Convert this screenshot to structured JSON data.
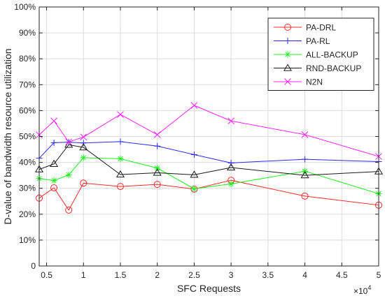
{
  "chart_data": {
    "type": "line",
    "xlabel": "SFC Requests",
    "ylabel": "D-value of bandwidth resource utilization",
    "x_multiplier_label": "×10",
    "x_multiplier_exp": "4",
    "xlim": [
      0.4,
      5
    ],
    "ylim": [
      0,
      100
    ],
    "x_ticks": [
      0.5,
      1,
      1.5,
      2,
      2.5,
      3,
      3.5,
      4,
      4.5,
      5
    ],
    "x_tick_labels": [
      "0.5",
      "1",
      "1.5",
      "2",
      "2.5",
      "3",
      "3.5",
      "4",
      "4.5",
      "5"
    ],
    "y_ticks": [
      0,
      10,
      20,
      30,
      40,
      50,
      60,
      70,
      80,
      90,
      100
    ],
    "y_tick_labels": [
      "0",
      "10%",
      "20%",
      "30%",
      "40%",
      "50%",
      "60%",
      "70%",
      "80%",
      "90%",
      "100%"
    ],
    "grid": true,
    "legend_position": "top-right",
    "x": [
      0.4,
      0.6,
      0.8,
      1.0,
      1.5,
      2.0,
      2.5,
      3.0,
      4.0,
      5.0
    ],
    "series": [
      {
        "name": "PA-DRL",
        "color": "#ff2a2a",
        "marker": "circle",
        "values": [
          26.2,
          30.2,
          21.6,
          32.0,
          30.7,
          31.5,
          29.7,
          33.1,
          27.0,
          23.5
        ]
      },
      {
        "name": "PA-RL",
        "color": "#2a2aff",
        "marker": "plus",
        "values": [
          41.6,
          47.6,
          47.8,
          47.5,
          48.0,
          46.3,
          43.0,
          39.8,
          41.2,
          40.3
        ]
      },
      {
        "name": "ALL-BACKUP",
        "color": "#22ee22",
        "marker": "asterisk",
        "values": [
          33.8,
          33.0,
          35.2,
          41.8,
          41.4,
          37.8,
          29.8,
          31.7,
          36.6,
          27.9
        ]
      },
      {
        "name": "RND-BACKUP",
        "color": "#1a1a1a",
        "marker": "triangle",
        "values": [
          37.3,
          39.4,
          46.8,
          45.8,
          35.3,
          36.0,
          35.2,
          38.0,
          35.0,
          36.5
        ]
      },
      {
        "name": "N2N",
        "color": "#ff22ff",
        "marker": "x",
        "values": [
          50.6,
          56.0,
          47.9,
          49.8,
          58.5,
          50.7,
          62.0,
          56.0,
          50.7,
          42.3
        ]
      }
    ]
  }
}
